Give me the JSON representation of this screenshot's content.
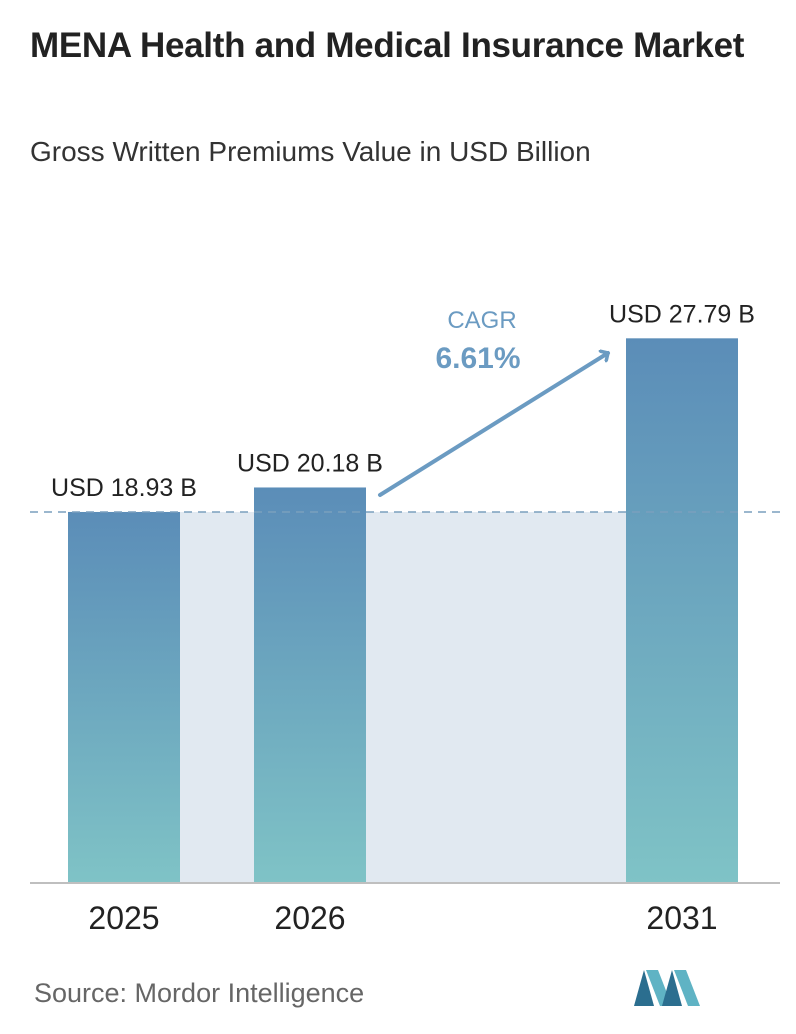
{
  "header": {
    "title": "MENA Health and Medical Insurance Market",
    "subtitle": "Gross Written Premiums Value in USD Billion"
  },
  "chart_data": {
    "type": "bar",
    "title": "MENA Health and Medical Insurance Market",
    "subtitle": "Gross Written Premiums Value in USD Billion",
    "categories": [
      "2025",
      "2026",
      "2031"
    ],
    "values": [
      18.93,
      20.18,
      27.79
    ],
    "data_labels": [
      "USD 18.93 B",
      "USD 20.18 B",
      "USD 27.79 B"
    ],
    "xlabel": "",
    "ylabel": "",
    "grid": false,
    "annotations": {
      "cagr_label": "CAGR",
      "cagr_value": "6.61%"
    },
    "colors": {
      "bar_top": "#5b8db8",
      "bar_bottom": "#7fc3c6",
      "band": "#e1e9f1",
      "accent": "#6b9bc2",
      "axis": "#bfbfbf"
    }
  },
  "footer": {
    "source": "Source:  Mordor Intelligence",
    "logo_icon": "mordor-intelligence-logo-icon"
  }
}
